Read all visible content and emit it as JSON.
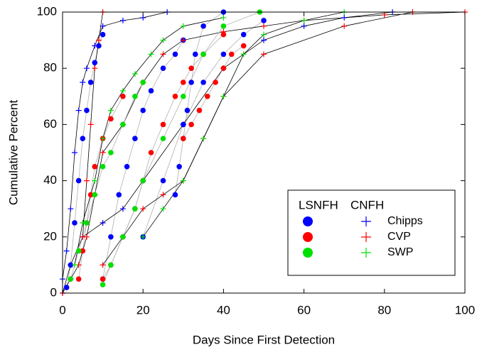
{
  "chart_data": {
    "type": "scatter",
    "xlabel": "Days Since First Detection",
    "ylabel": "Cumulative Percent",
    "xlim": [
      0,
      100
    ],
    "ylim": [
      0,
      100
    ],
    "xticks": [
      0,
      20,
      40,
      60,
      80,
      100
    ],
    "yticks": [
      0,
      20,
      40,
      60,
      80,
      100
    ],
    "legend": "lower right",
    "legend_headers": [
      "LSNFH",
      "CNFH"
    ],
    "series": [
      {
        "name": "Chipps",
        "group": "LSNFH",
        "marker": "dot",
        "color": "#0000ff",
        "line_color": "#b0b0b0",
        "x": [
          1,
          2,
          3,
          4,
          5,
          6,
          7,
          8,
          9,
          10,
          null,
          10,
          12,
          14,
          16,
          18,
          20,
          22,
          25,
          28,
          30,
          null,
          28,
          29,
          30,
          31,
          32,
          33,
          35,
          40,
          null,
          20,
          25,
          30,
          35,
          40,
          45,
          50
        ],
        "values": [
          2,
          10,
          25,
          40,
          55,
          65,
          75,
          82,
          88,
          92,
          null,
          5,
          20,
          35,
          45,
          55,
          65,
          72,
          80,
          85,
          90,
          null,
          35,
          45,
          55,
          65,
          75,
          85,
          95,
          100,
          null,
          20,
          40,
          60,
          75,
          85,
          92,
          97
        ]
      },
      {
        "name": "Chipps",
        "group": "CNFH",
        "marker": "plus",
        "color": "#0000ff",
        "line_color": "#000000",
        "x": [
          0,
          1,
          2,
          3,
          4,
          5,
          6,
          8,
          10,
          15,
          20,
          26,
          null,
          0,
          2,
          5,
          10,
          15,
          20,
          30,
          40,
          50,
          60,
          70,
          82
        ],
        "values": [
          5,
          15,
          30,
          50,
          65,
          75,
          80,
          88,
          95,
          97,
          98,
          100,
          null,
          0,
          10,
          20,
          25,
          30,
          40,
          60,
          80,
          90,
          95,
          98,
          100
        ]
      },
      {
        "name": "CVP",
        "group": "LSNFH",
        "marker": "dot",
        "color": "#ff0000",
        "line_color": "#b0b0b0",
        "x": [
          4,
          5,
          6,
          7,
          8,
          10,
          12,
          15,
          null,
          10,
          12,
          15,
          18,
          20,
          22,
          25,
          28,
          30,
          32,
          35,
          40,
          null,
          30,
          32,
          34,
          36,
          38,
          40,
          42,
          45
        ],
        "values": [
          5,
          15,
          25,
          35,
          45,
          55,
          62,
          70,
          null,
          5,
          10,
          20,
          30,
          40,
          50,
          60,
          70,
          75,
          80,
          85,
          92,
          null,
          55,
          60,
          65,
          70,
          75,
          80,
          85,
          88
        ]
      },
      {
        "name": "CVP",
        "group": "CNFH",
        "marker": "plus",
        "color": "#ff0000",
        "line_color": "#000000",
        "x": [
          0,
          2,
          4,
          6,
          8,
          10,
          15,
          20,
          25,
          30,
          40,
          50,
          60,
          80,
          100,
          null,
          5,
          6,
          7,
          8,
          9,
          10,
          null,
          10,
          15,
          20,
          25,
          30,
          35,
          40,
          50,
          70,
          87
        ],
        "values": [
          0,
          5,
          10,
          20,
          35,
          50,
          60,
          75,
          85,
          90,
          93,
          95,
          97,
          99,
          100,
          null,
          20,
          40,
          60,
          80,
          90,
          100,
          null,
          10,
          20,
          30,
          35,
          40,
          55,
          70,
          85,
          95,
          100
        ]
      },
      {
        "name": "SWP",
        "group": "LSNFH",
        "marker": "dot",
        "color": "#00e000",
        "line_color": "#b0b0b0",
        "x": [
          2,
          4,
          6,
          8,
          10,
          12,
          15,
          18,
          20,
          null,
          10,
          12,
          15,
          18,
          20,
          25,
          30,
          35,
          40,
          49
        ],
        "values": [
          5,
          15,
          25,
          35,
          45,
          50,
          60,
          70,
          75,
          null,
          3,
          10,
          20,
          30,
          40,
          55,
          70,
          85,
          95,
          100
        ]
      },
      {
        "name": "SWP",
        "group": "CNFH",
        "marker": "plus",
        "color": "#00e000",
        "line_color": "#000000",
        "x": [
          3,
          5,
          8,
          10,
          12,
          15,
          18,
          22,
          25,
          30,
          40,
          null,
          20,
          25,
          30,
          35,
          40,
          45,
          50,
          60,
          70
        ],
        "values": [
          10,
          25,
          40,
          55,
          65,
          72,
          78,
          85,
          90,
          95,
          98,
          null,
          20,
          30,
          40,
          55,
          70,
          85,
          92,
          97,
          100
        ]
      }
    ]
  }
}
